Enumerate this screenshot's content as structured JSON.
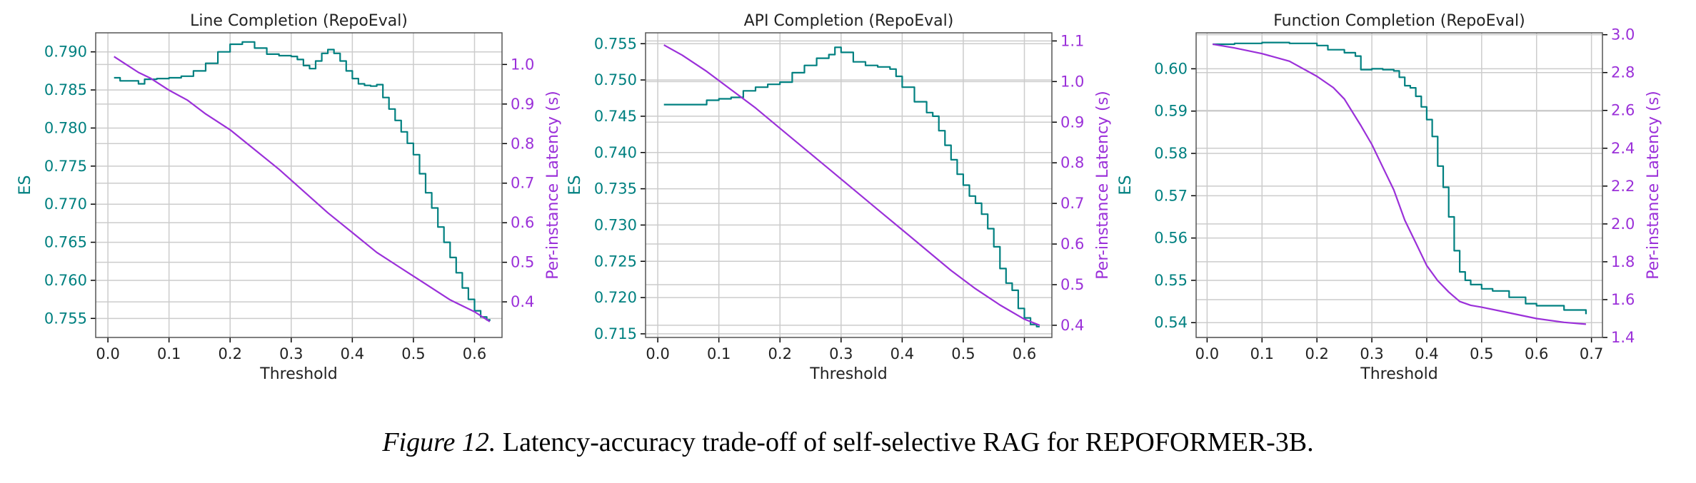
{
  "colors": {
    "es": "#008080",
    "latency": "#9b30d9",
    "grid": "#cccccc",
    "axis": "#000000"
  },
  "caption": {
    "label": "Figure 12.",
    "text": "Latency-accuracy trade-off of self-selective RAG for REPOFORMER-3B."
  },
  "chart_data": [
    {
      "type": "line",
      "title": "Line Completion (RepoEval)",
      "xlabel": "Threshold",
      "ylabel": "ES",
      "y2label": "Per-instance Latency (s)",
      "xlim": [
        -0.02,
        0.645
      ],
      "ylim": [
        0.7525,
        0.7925
      ],
      "y2lim": [
        0.31,
        1.08
      ],
      "xticks": [
        "0.0",
        "0.1",
        "0.2",
        "0.3",
        "0.4",
        "0.5",
        "0.6"
      ],
      "yticks": [
        "0.755",
        "0.760",
        "0.765",
        "0.770",
        "0.775",
        "0.780",
        "0.785",
        "0.790"
      ],
      "y2ticks": [
        "0.4",
        "0.5",
        "0.6",
        "0.7",
        "0.8",
        "0.9",
        "1.0"
      ],
      "grid": true,
      "series": [
        {
          "axis": "left",
          "color": "es",
          "points": [
            [
              0.01,
              0.7866
            ],
            [
              0.02,
              0.7862
            ],
            [
              0.04,
              0.7862
            ],
            [
              0.05,
              0.7858
            ],
            [
              0.06,
              0.7864
            ],
            [
              0.08,
              0.7865
            ],
            [
              0.1,
              0.7866
            ],
            [
              0.12,
              0.7868
            ],
            [
              0.14,
              0.7875
            ],
            [
              0.16,
              0.7885
            ],
            [
              0.18,
              0.79
            ],
            [
              0.2,
              0.791
            ],
            [
              0.22,
              0.7913
            ],
            [
              0.24,
              0.7905
            ],
            [
              0.26,
              0.7897
            ],
            [
              0.28,
              0.7895
            ],
            [
              0.3,
              0.7894
            ],
            [
              0.31,
              0.789
            ],
            [
              0.32,
              0.7882
            ],
            [
              0.33,
              0.7878
            ],
            [
              0.34,
              0.7888
            ],
            [
              0.35,
              0.7898
            ],
            [
              0.36,
              0.7903
            ],
            [
              0.37,
              0.7898
            ],
            [
              0.38,
              0.7888
            ],
            [
              0.39,
              0.7875
            ],
            [
              0.4,
              0.7865
            ],
            [
              0.41,
              0.7858
            ],
            [
              0.42,
              0.7856
            ],
            [
              0.43,
              0.7855
            ],
            [
              0.44,
              0.7857
            ],
            [
              0.45,
              0.784
            ],
            [
              0.46,
              0.7825
            ],
            [
              0.47,
              0.781
            ],
            [
              0.48,
              0.7795
            ],
            [
              0.49,
              0.778
            ],
            [
              0.5,
              0.7765
            ],
            [
              0.51,
              0.774
            ],
            [
              0.52,
              0.7715
            ],
            [
              0.53,
              0.7695
            ],
            [
              0.54,
              0.767
            ],
            [
              0.55,
              0.765
            ],
            [
              0.56,
              0.763
            ],
            [
              0.57,
              0.761
            ],
            [
              0.58,
              0.759
            ],
            [
              0.59,
              0.7575
            ],
            [
              0.6,
              0.756
            ],
            [
              0.61,
              0.7552
            ],
            [
              0.62,
              0.7548
            ],
            [
              0.625,
              0.7547
            ]
          ]
        },
        {
          "axis": "right",
          "color": "latency",
          "points": [
            [
              0.01,
              1.02
            ],
            [
              0.03,
              1.0
            ],
            [
              0.05,
              0.98
            ],
            [
              0.07,
              0.965
            ],
            [
              0.1,
              0.935
            ],
            [
              0.13,
              0.91
            ],
            [
              0.16,
              0.875
            ],
            [
              0.2,
              0.835
            ],
            [
              0.24,
              0.785
            ],
            [
              0.28,
              0.735
            ],
            [
              0.32,
              0.68
            ],
            [
              0.36,
              0.625
            ],
            [
              0.4,
              0.575
            ],
            [
              0.44,
              0.525
            ],
            [
              0.48,
              0.485
            ],
            [
              0.52,
              0.445
            ],
            [
              0.56,
              0.405
            ],
            [
              0.6,
              0.375
            ],
            [
              0.625,
              0.35
            ]
          ]
        }
      ]
    },
    {
      "type": "line",
      "title": "API Completion (RepoEval)",
      "xlabel": "Threshold",
      "ylabel": "ES",
      "y2label": "Per-instance Latency (s)",
      "xlim": [
        -0.02,
        0.645
      ],
      "ylim": [
        0.7145,
        0.7565
      ],
      "y2lim": [
        0.37,
        1.12
      ],
      "xticks": [
        "0.0",
        "0.1",
        "0.2",
        "0.3",
        "0.4",
        "0.5",
        "0.6"
      ],
      "yticks": [
        "0.715",
        "0.720",
        "0.725",
        "0.730",
        "0.735",
        "0.740",
        "0.745",
        "0.750",
        "0.755"
      ],
      "y2ticks": [
        "0.4",
        "0.5",
        "0.6",
        "0.7",
        "0.8",
        "0.9",
        "1.0",
        "1.1"
      ],
      "grid": true,
      "series": [
        {
          "axis": "left",
          "color": "es",
          "points": [
            [
              0.01,
              0.7466
            ],
            [
              0.04,
              0.7466
            ],
            [
              0.06,
              0.7466
            ],
            [
              0.08,
              0.7472
            ],
            [
              0.1,
              0.7474
            ],
            [
              0.12,
              0.7476
            ],
            [
              0.14,
              0.7485
            ],
            [
              0.16,
              0.749
            ],
            [
              0.18,
              0.7494
            ],
            [
              0.2,
              0.7497
            ],
            [
              0.22,
              0.751
            ],
            [
              0.24,
              0.752
            ],
            [
              0.26,
              0.753
            ],
            [
              0.28,
              0.7535
            ],
            [
              0.29,
              0.7545
            ],
            [
              0.3,
              0.7538
            ],
            [
              0.32,
              0.7525
            ],
            [
              0.34,
              0.752
            ],
            [
              0.36,
              0.7518
            ],
            [
              0.38,
              0.7515
            ],
            [
              0.39,
              0.7505
            ],
            [
              0.4,
              0.749
            ],
            [
              0.42,
              0.747
            ],
            [
              0.44,
              0.7455
            ],
            [
              0.45,
              0.745
            ],
            [
              0.46,
              0.743
            ],
            [
              0.47,
              0.741
            ],
            [
              0.48,
              0.739
            ],
            [
              0.49,
              0.737
            ],
            [
              0.5,
              0.7355
            ],
            [
              0.51,
              0.734
            ],
            [
              0.52,
              0.733
            ],
            [
              0.53,
              0.7315
            ],
            [
              0.54,
              0.7295
            ],
            [
              0.55,
              0.727
            ],
            [
              0.56,
              0.724
            ],
            [
              0.57,
              0.722
            ],
            [
              0.58,
              0.721
            ],
            [
              0.59,
              0.7185
            ],
            [
              0.6,
              0.7172
            ],
            [
              0.61,
              0.7163
            ],
            [
              0.62,
              0.716
            ],
            [
              0.625,
              0.716
            ]
          ]
        },
        {
          "axis": "right",
          "color": "latency",
          "points": [
            [
              0.01,
              1.09
            ],
            [
              0.04,
              1.065
            ],
            [
              0.08,
              1.025
            ],
            [
              0.12,
              0.98
            ],
            [
              0.16,
              0.935
            ],
            [
              0.2,
              0.885
            ],
            [
              0.24,
              0.835
            ],
            [
              0.28,
              0.785
            ],
            [
              0.32,
              0.735
            ],
            [
              0.36,
              0.685
            ],
            [
              0.4,
              0.635
            ],
            [
              0.44,
              0.585
            ],
            [
              0.48,
              0.535
            ],
            [
              0.52,
              0.49
            ],
            [
              0.56,
              0.45
            ],
            [
              0.6,
              0.415
            ],
            [
              0.625,
              0.4
            ]
          ]
        }
      ]
    },
    {
      "type": "line",
      "title": "Function Completion (RepoEval)",
      "xlabel": "Threshold",
      "ylabel": "ES",
      "y2label": "Per-instance Latency (s)",
      "xlim": [
        -0.02,
        0.72
      ],
      "ylim": [
        0.5365,
        0.6085
      ],
      "y2lim": [
        1.4,
        3.01
      ],
      "xticks": [
        "0.0",
        "0.1",
        "0.2",
        "0.3",
        "0.4",
        "0.5",
        "0.6",
        "0.7"
      ],
      "yticks": [
        "0.54",
        "0.55",
        "0.56",
        "0.57",
        "0.58",
        "0.59",
        "0.60"
      ],
      "y2ticks": [
        "1.4",
        "1.6",
        "1.8",
        "2.0",
        "2.2",
        "2.4",
        "2.6",
        "2.8",
        "3.0"
      ],
      "grid": true,
      "series": [
        {
          "axis": "left",
          "color": "es",
          "points": [
            [
              0.01,
              0.6058
            ],
            [
              0.05,
              0.606
            ],
            [
              0.1,
              0.6062
            ],
            [
              0.15,
              0.606
            ],
            [
              0.2,
              0.6055
            ],
            [
              0.22,
              0.6045
            ],
            [
              0.25,
              0.6038
            ],
            [
              0.27,
              0.603
            ],
            [
              0.28,
              0.5998
            ],
            [
              0.3,
              0.6
            ],
            [
              0.32,
              0.5998
            ],
            [
              0.34,
              0.5995
            ],
            [
              0.35,
              0.598
            ],
            [
              0.36,
              0.596
            ],
            [
              0.37,
              0.5955
            ],
            [
              0.38,
              0.5935
            ],
            [
              0.39,
              0.591
            ],
            [
              0.4,
              0.588
            ],
            [
              0.41,
              0.584
            ],
            [
              0.42,
              0.577
            ],
            [
              0.43,
              0.572
            ],
            [
              0.44,
              0.565
            ],
            [
              0.45,
              0.557
            ],
            [
              0.46,
              0.552
            ],
            [
              0.47,
              0.55
            ],
            [
              0.48,
              0.549
            ],
            [
              0.5,
              0.548
            ],
            [
              0.52,
              0.5475
            ],
            [
              0.55,
              0.546
            ],
            [
              0.58,
              0.5445
            ],
            [
              0.6,
              0.544
            ],
            [
              0.65,
              0.543
            ],
            [
              0.69,
              0.542
            ]
          ]
        },
        {
          "axis": "right",
          "color": "latency",
          "points": [
            [
              0.01,
              2.95
            ],
            [
              0.05,
              2.93
            ],
            [
              0.1,
              2.9
            ],
            [
              0.15,
              2.86
            ],
            [
              0.2,
              2.78
            ],
            [
              0.23,
              2.72
            ],
            [
              0.25,
              2.66
            ],
            [
              0.28,
              2.52
            ],
            [
              0.3,
              2.42
            ],
            [
              0.32,
              2.3
            ],
            [
              0.34,
              2.18
            ],
            [
              0.36,
              2.02
            ],
            [
              0.38,
              1.9
            ],
            [
              0.4,
              1.78
            ],
            [
              0.42,
              1.7
            ],
            [
              0.44,
              1.64
            ],
            [
              0.46,
              1.59
            ],
            [
              0.48,
              1.57
            ],
            [
              0.5,
              1.56
            ],
            [
              0.55,
              1.53
            ],
            [
              0.6,
              1.5
            ],
            [
              0.65,
              1.48
            ],
            [
              0.69,
              1.47
            ]
          ]
        }
      ]
    }
  ]
}
